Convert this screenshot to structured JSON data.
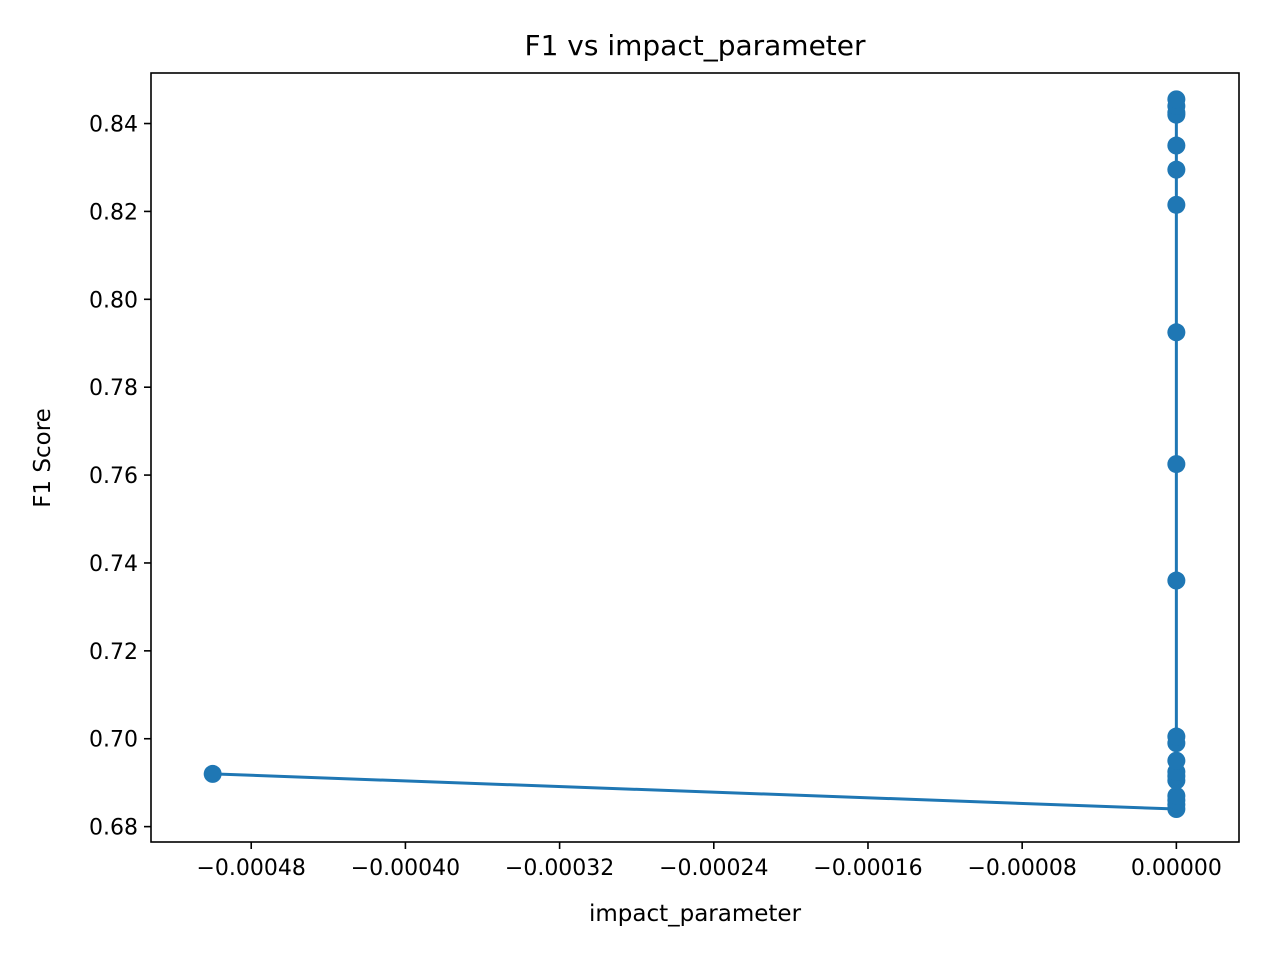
{
  "chart_data": {
    "type": "line",
    "title": "F1 vs impact_parameter",
    "xlabel": "impact_parameter",
    "ylabel": "F1 Score",
    "xlim": [
      -0.000532,
      3.25e-05
    ],
    "ylim": [
      0.6765,
      0.8515
    ],
    "x_ticks": [
      -0.00048,
      -0.0004,
      -0.00032,
      -0.00024,
      -0.00016,
      -8e-05,
      0.0
    ],
    "x_tick_labels": [
      "−0.00048",
      "−0.00040",
      "−0.00032",
      "−0.00024",
      "−0.00016",
      "−0.00008",
      "0.00000"
    ],
    "y_ticks": [
      0.68,
      0.7,
      0.72,
      0.74,
      0.76,
      0.78,
      0.8,
      0.82,
      0.84
    ],
    "y_tick_labels": [
      "0.68",
      "0.70",
      "0.72",
      "0.74",
      "0.76",
      "0.78",
      "0.80",
      "0.82",
      "0.84"
    ],
    "grid": false,
    "legend": "none",
    "series": [
      {
        "color": "#1f77b4",
        "marker": "circle",
        "x": [
          -0.0005,
          0.0,
          0.0,
          0.0,
          0.0,
          0.0,
          0.0,
          0.0,
          0.0,
          0.0,
          0.0,
          0.0,
          0.0,
          0.0,
          0.0,
          0.0,
          0.0,
          0.0
        ],
        "y": [
          0.692,
          0.684,
          0.685,
          0.686,
          0.687,
          0.6905,
          0.6915,
          0.6925,
          0.695,
          0.699,
          0.7005,
          0.736,
          0.7625,
          0.7925,
          0.8215,
          0.8295,
          0.835,
          0.842
        ]
      }
    ],
    "extra_points": {
      "x": [
        0.0,
        0.0,
        0.0
      ],
      "y": [
        0.8425,
        0.844,
        0.8455
      ]
    }
  }
}
